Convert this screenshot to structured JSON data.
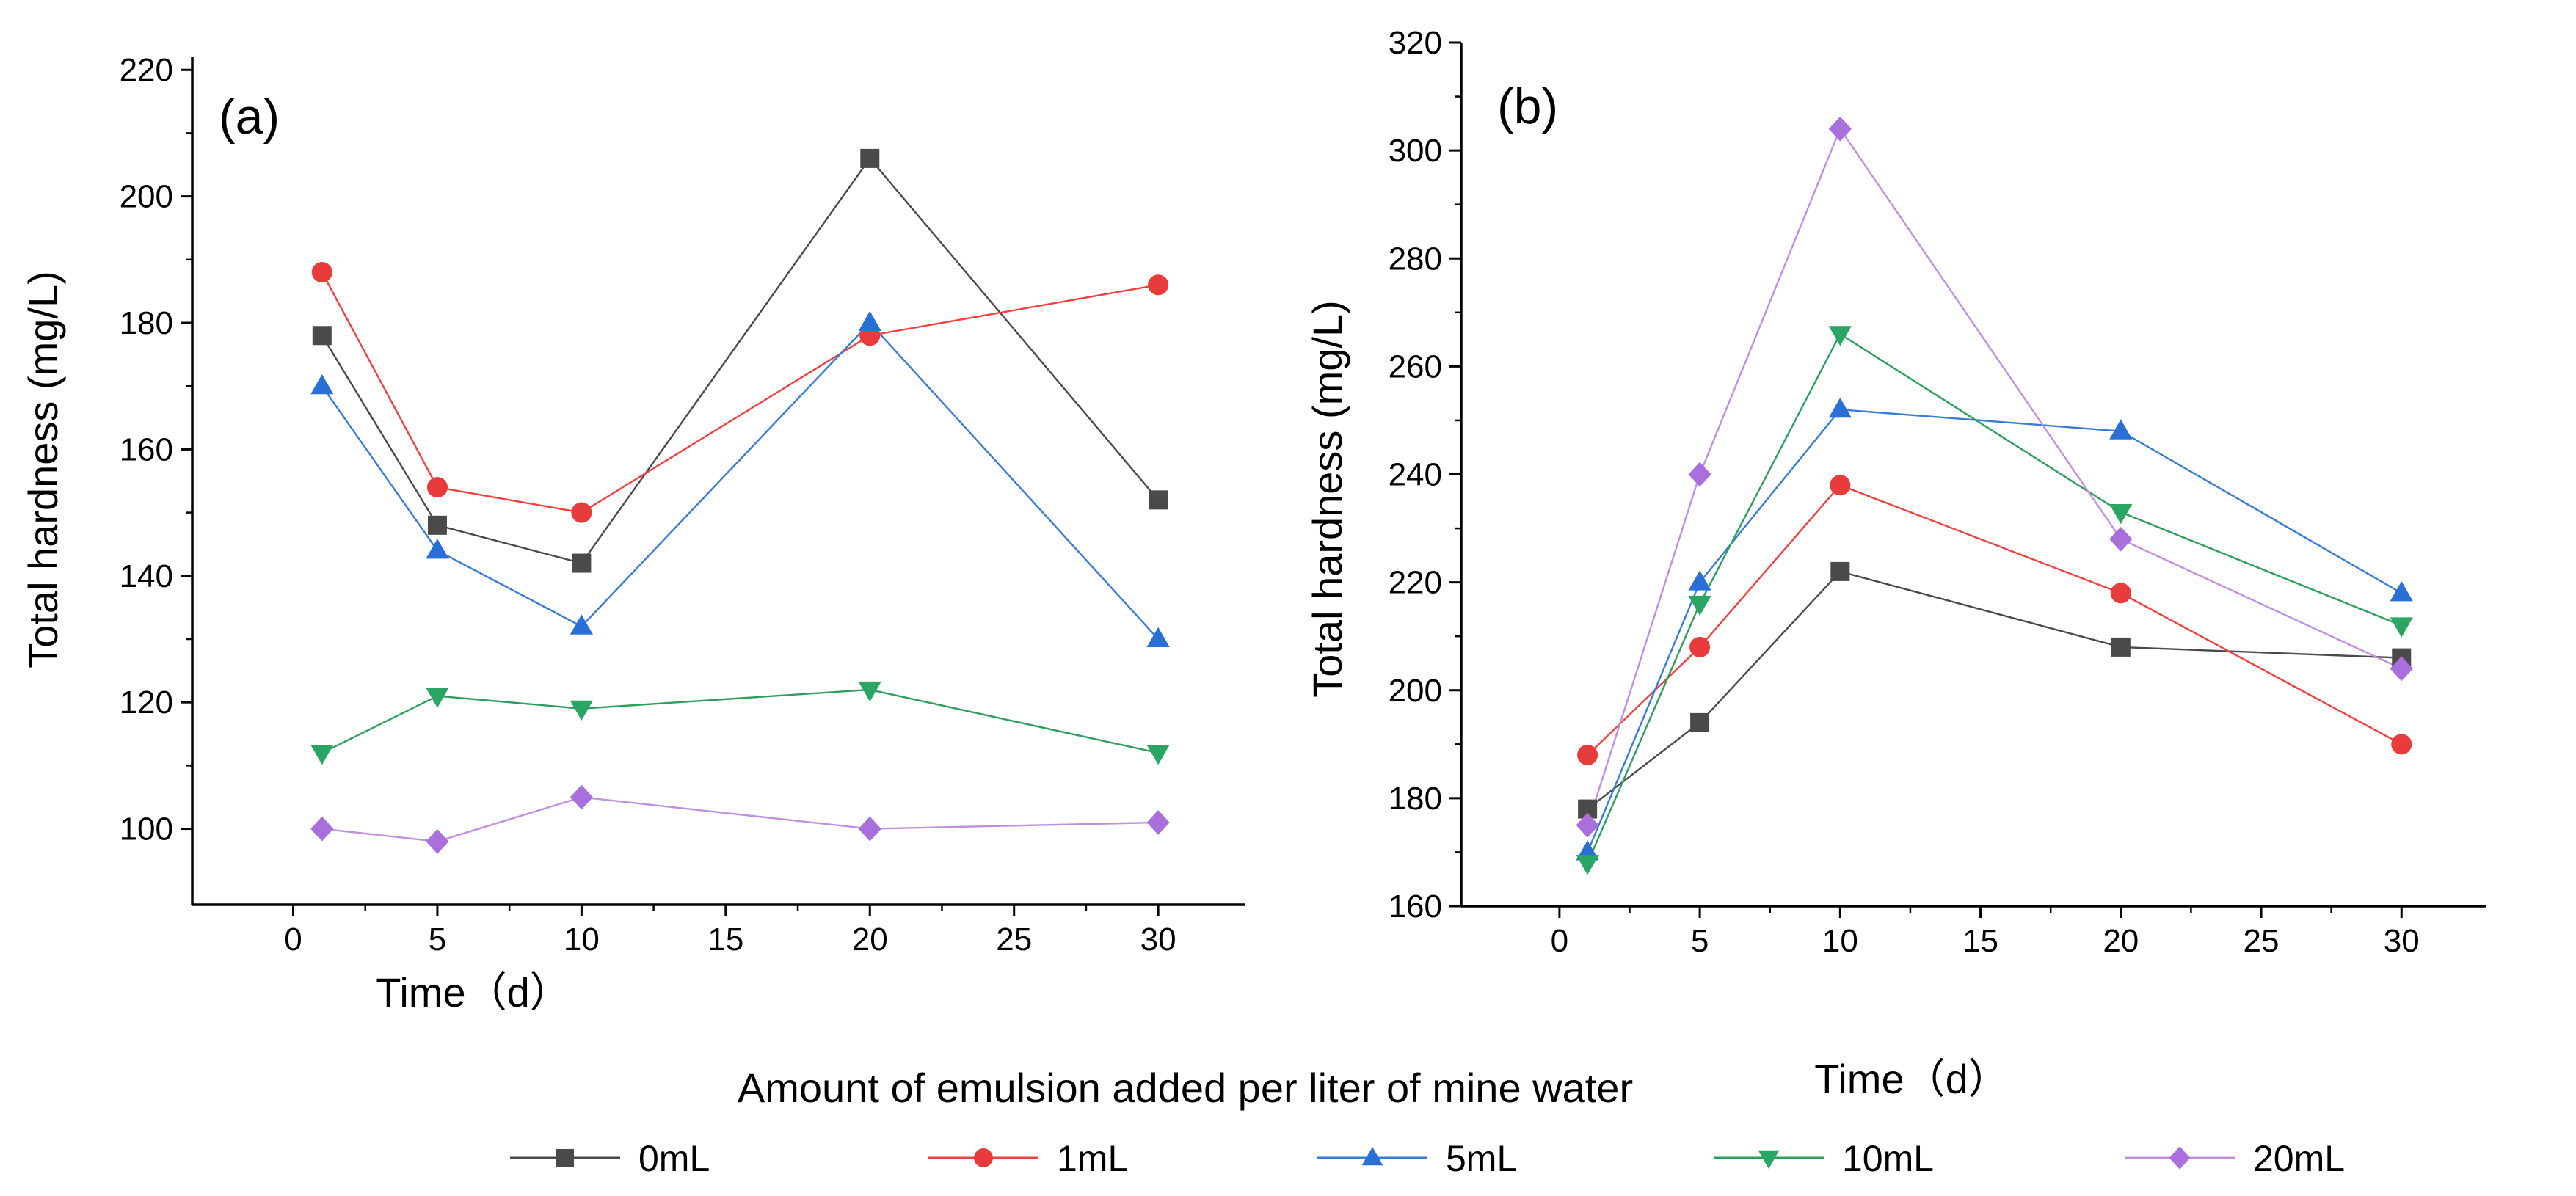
{
  "chart_data": [
    {
      "type": "line",
      "panel_label": "(a)",
      "xlabel": "Time（d）",
      "ylabel": "Total hardness (mg/L)",
      "xlim": [
        -3.5,
        33
      ],
      "ylim": [
        88,
        222
      ],
      "xticks": [
        0,
        5,
        10,
        15,
        20,
        25,
        30
      ],
      "yticks": [
        100,
        120,
        140,
        160,
        180,
        200,
        220
      ],
      "x": [
        1,
        5,
        10,
        20,
        30
      ],
      "series": [
        {
          "name": "0mL",
          "values": [
            178,
            148,
            142,
            206,
            152
          ]
        },
        {
          "name": "1mL",
          "values": [
            188,
            154,
            150,
            178,
            186
          ]
        },
        {
          "name": "5mL",
          "values": [
            170,
            144,
            132,
            180,
            130
          ]
        },
        {
          "name": "10mL",
          "values": [
            112,
            121,
            119,
            122,
            112
          ]
        },
        {
          "name": "20mL",
          "values": [
            100,
            98,
            105,
            100,
            101
          ]
        }
      ]
    },
    {
      "type": "line",
      "panel_label": "(b)",
      "xlabel": "Time（d）",
      "ylabel": "Total hardness (mg/L)",
      "xlim": [
        -3.5,
        33
      ],
      "ylim": [
        160,
        320
      ],
      "xticks": [
        0,
        5,
        10,
        15,
        20,
        25,
        30
      ],
      "yticks": [
        160,
        180,
        200,
        220,
        240,
        260,
        280,
        300,
        320
      ],
      "x": [
        1,
        5,
        10,
        20,
        30
      ],
      "series": [
        {
          "name": "0mL",
          "values": [
            178,
            194,
            222,
            208,
            206
          ]
        },
        {
          "name": "1mL",
          "values": [
            188,
            208,
            238,
            218,
            190
          ]
        },
        {
          "name": "5mL",
          "values": [
            170,
            220,
            252,
            248,
            218
          ]
        },
        {
          "name": "10mL",
          "values": [
            168,
            216,
            266,
            233,
            212
          ]
        },
        {
          "name": "20mL",
          "values": [
            175,
            240,
            304,
            228,
            204
          ]
        }
      ]
    }
  ],
  "legend": {
    "title": "Amount of emulsion added per liter of mine water",
    "items": [
      "0mL",
      "1mL",
      "5mL",
      "10mL",
      "20mL"
    ]
  },
  "styles": {
    "series": [
      {
        "line": "#4a4a4a",
        "fill": "#4a4a4a",
        "marker": "square"
      },
      {
        "line": "#f04040",
        "fill": "#e83c3c",
        "marker": "circle"
      },
      {
        "line": "#3a7bd5",
        "fill": "#2a6fd6",
        "marker": "triangle-up"
      },
      {
        "line": "#2e9e5e",
        "fill": "#2aa564",
        "marker": "triangle-down"
      },
      {
        "line": "#c090e0",
        "fill": "#a970dd",
        "marker": "diamond"
      }
    ]
  }
}
